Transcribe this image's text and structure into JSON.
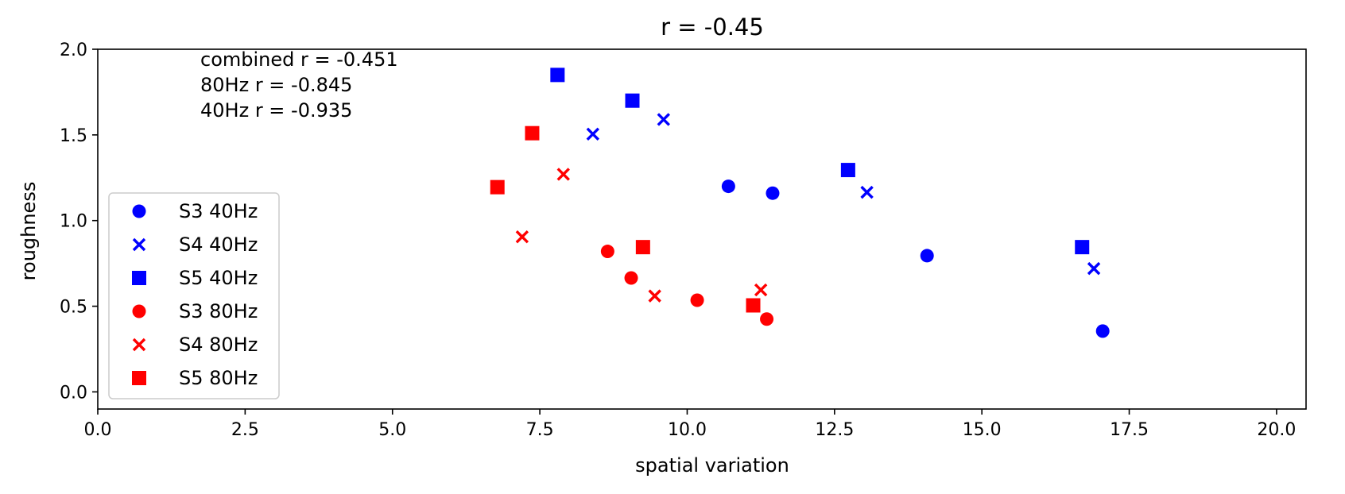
{
  "chart_data": {
    "type": "scatter",
    "title": "r = -0.45",
    "xlabel": "spatial variation",
    "ylabel": "roughness",
    "xlim": [
      0,
      20.5
    ],
    "ylim": [
      -0.1,
      2.0
    ],
    "xticks": [
      0.0,
      2.5,
      5.0,
      7.5,
      10.0,
      12.5,
      15.0,
      17.5,
      20.0
    ],
    "yticks": [
      0.0,
      0.5,
      1.0,
      1.5,
      2.0
    ],
    "xtick_labels": [
      "0.0",
      "2.5",
      "5.0",
      "7.5",
      "10.0",
      "12.5",
      "15.0",
      "17.5",
      "20.0"
    ],
    "ytick_labels": [
      "0.0",
      "0.5",
      "1.0",
      "1.5",
      "2.0"
    ],
    "grid": false,
    "legend_position": "lower-left",
    "annotations": [
      "combined r = -0.451",
      "80Hz r = -0.845",
      "40Hz r = -0.935"
    ],
    "series": [
      {
        "name": "S3 40Hz",
        "marker": "circle",
        "color": "#0000ff",
        "points": [
          [
            10.7,
            1.2
          ],
          [
            11.45,
            1.16
          ],
          [
            14.07,
            0.795
          ],
          [
            17.05,
            0.355
          ]
        ]
      },
      {
        "name": "S4 40Hz",
        "marker": "x",
        "color": "#0000ff",
        "points": [
          [
            8.4,
            1.505
          ],
          [
            9.6,
            1.59
          ],
          [
            13.05,
            1.165
          ],
          [
            16.9,
            0.72
          ]
        ]
      },
      {
        "name": "S5 40Hz",
        "marker": "square",
        "color": "#0000ff",
        "points": [
          [
            7.8,
            1.85
          ],
          [
            9.07,
            1.7
          ],
          [
            12.73,
            1.295
          ],
          [
            16.7,
            0.845
          ]
        ]
      },
      {
        "name": "S3 80Hz",
        "marker": "circle",
        "color": "#ff0000",
        "points": [
          [
            8.65,
            0.82
          ],
          [
            9.05,
            0.665
          ],
          [
            10.17,
            0.535
          ],
          [
            11.35,
            0.425
          ]
        ]
      },
      {
        "name": "S4 80Hz",
        "marker": "x",
        "color": "#ff0000",
        "points": [
          [
            7.2,
            0.905
          ],
          [
            7.9,
            1.27
          ],
          [
            9.45,
            0.56
          ],
          [
            11.25,
            0.595
          ]
        ]
      },
      {
        "name": "S5 80Hz",
        "marker": "square",
        "color": "#ff0000",
        "points": [
          [
            6.78,
            1.195
          ],
          [
            7.37,
            1.51
          ],
          [
            9.25,
            0.845
          ],
          [
            11.12,
            0.505
          ]
        ]
      }
    ]
  }
}
